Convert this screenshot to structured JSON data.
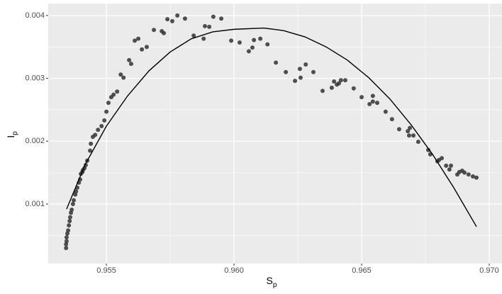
{
  "chart_data": {
    "type": "scatter",
    "x_label": "S",
    "x_label_sub": "p",
    "y_label": "I",
    "y_label_sub": "p",
    "xlim": [
      0.95272,
      0.9705
    ],
    "ylim": [
      5.3e-05,
      0.00419
    ],
    "xticks": [
      0.955,
      {
        "value": 0.96,
        "label": "0.960"
      },
      0.965,
      {
        "value": 0.97,
        "label": "0.970"
      }
    ],
    "yticks": [
      0.001,
      0.002,
      0.003,
      0.004
    ],
    "xminor": [
      0.9575,
      0.9625,
      0.9675
    ],
    "yminor": [
      0.0005,
      0.0015,
      0.0025,
      0.0035
    ],
    "grid": true,
    "panel_color": "#ebebeb",
    "grid_color": "#ffffff",
    "series": [
      {
        "kind": "point",
        "color": "#333333",
        "x": [
          0.95342,
          0.95342,
          0.95344,
          0.95344,
          0.95347,
          0.9535,
          0.95353,
          0.95356,
          0.95358,
          0.95361,
          0.95364,
          0.95369,
          0.95372,
          0.95378,
          0.95381,
          0.95386,
          0.95392,
          0.95397,
          0.954,
          0.95406,
          0.95408,
          0.95414,
          0.95419,
          0.95425,
          0.95436,
          0.95439,
          0.95447,
          0.95456,
          0.95467,
          0.95481,
          0.95492,
          0.955,
          0.95508,
          0.95519,
          0.95528,
          0.95542,
          0.95556,
          0.95567,
          0.95589,
          0.95597,
          0.95611,
          0.95625,
          0.95639,
          0.95658,
          0.95686,
          0.95717,
          0.95725,
          0.95739,
          0.95758,
          0.95778,
          0.95808,
          0.95842,
          0.95881,
          0.95886,
          0.95903,
          0.95919,
          0.9595,
          0.95989,
          0.96022,
          0.96058,
          0.96072,
          0.96078,
          0.96103,
          0.96131,
          0.96164,
          0.96203,
          0.96239,
          0.96258,
          0.96261,
          0.96281,
          0.96311,
          0.96347,
          0.96383,
          0.96392,
          0.96403,
          0.96411,
          0.96419,
          0.96436,
          0.96469,
          0.965,
          0.96531,
          0.96544,
          0.96544,
          0.96561,
          0.96594,
          0.96619,
          0.96647,
          0.96681,
          0.96686,
          0.96689,
          0.96703,
          0.96722,
          0.96761,
          0.96769,
          0.96797,
          0.96803,
          0.96814,
          0.96831,
          0.96844,
          0.9685,
          0.96875,
          0.96883,
          0.96894,
          0.96903,
          0.96919,
          0.96936,
          0.9695
        ],
        "values": [
          0.0003,
          0.00036,
          0.00041,
          0.00047,
          0.00053,
          0.00058,
          0.00066,
          0.00073,
          0.00079,
          0.00086,
          0.00091,
          0.001,
          0.00106,
          0.00115,
          0.0012,
          0.00126,
          0.00134,
          0.00139,
          0.00148,
          0.00151,
          0.00154,
          0.00157,
          0.00162,
          0.00169,
          0.00185,
          0.00196,
          0.00207,
          0.0021,
          0.00218,
          0.00224,
          0.00233,
          0.00247,
          0.00261,
          0.0027,
          0.00274,
          0.00279,
          0.00306,
          0.00301,
          0.00329,
          0.00323,
          0.0036,
          0.00363,
          0.00346,
          0.0035,
          0.00377,
          0.00375,
          0.00372,
          0.00394,
          0.00391,
          0.004,
          0.00395,
          0.00368,
          0.00363,
          0.00383,
          0.00382,
          0.00398,
          0.00395,
          0.0036,
          0.00357,
          0.00343,
          0.00349,
          0.00361,
          0.00363,
          0.00354,
          0.00325,
          0.0031,
          0.00296,
          0.00315,
          0.00301,
          0.00322,
          0.0031,
          0.0028,
          0.00285,
          0.00295,
          0.0029,
          0.00292,
          0.00297,
          0.00297,
          0.00284,
          0.0027,
          0.00259,
          0.00263,
          0.00272,
          0.00261,
          0.00247,
          0.00235,
          0.00219,
          0.00216,
          0.00209,
          0.00221,
          0.00209,
          0.00199,
          0.00186,
          0.00179,
          0.00168,
          0.0017,
          0.00173,
          0.00161,
          0.00155,
          0.00161,
          0.00147,
          0.00151,
          0.00153,
          0.0015,
          0.00147,
          0.00144,
          0.00142
        ]
      },
      {
        "kind": "line",
        "color": "#000000",
        "x": [
          0.95344,
          0.95417,
          0.955,
          0.95583,
          0.95667,
          0.9575,
          0.95833,
          0.95917,
          0.96,
          0.96117,
          0.96194,
          0.96278,
          0.96361,
          0.96444,
          0.96528,
          0.96611,
          0.96694,
          0.96778,
          0.96861,
          0.9695
        ],
        "values": [
          0.00092,
          0.00163,
          0.00224,
          0.00272,
          0.00312,
          0.00342,
          0.00363,
          0.00374,
          0.00378,
          0.0038,
          0.00376,
          0.00366,
          0.0035,
          0.00329,
          0.00301,
          0.00267,
          0.00226,
          0.00179,
          0.00126,
          0.00064
        ]
      }
    ]
  }
}
